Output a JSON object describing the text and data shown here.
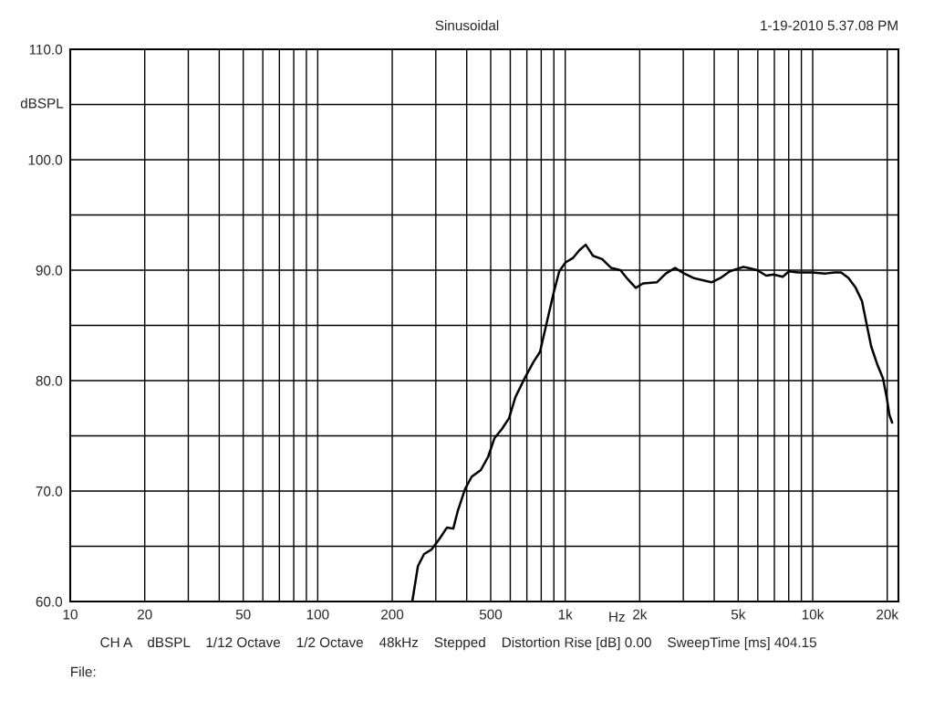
{
  "chart_data": {
    "type": "line",
    "title": "Sinusoidal",
    "xlabel": "Hz",
    "ylabel": "dBSPL",
    "annotations": [
      "1-19-2010 5.37.08 PM",
      "CH A    dBSPL    1/12 Octave    1/2 Octave    48kHz    Stepped    Distortion Rise [dB] 0.00    SweepTime [ms] 404.15",
      "File:"
    ],
    "log": "x",
    "grid": true,
    "marker": "none",
    "line_style": "solid",
    "xlim": [
      10,
      22200
    ],
    "ylim": [
      60,
      110
    ],
    "xticks": [
      10,
      20,
      {
        "value": 30,
        "label": null
      },
      {
        "value": 40,
        "label": null
      },
      50,
      {
        "value": 60,
        "label": null
      },
      {
        "value": 70,
        "label": null
      },
      {
        "value": 80,
        "label": null
      },
      {
        "value": 90,
        "label": null
      },
      100,
      200,
      {
        "value": 300,
        "label": null
      },
      {
        "value": 400,
        "label": null
      },
      500,
      {
        "value": 600,
        "label": null
      },
      {
        "value": 700,
        "label": null
      },
      {
        "value": 800,
        "label": null
      },
      {
        "value": 900,
        "label": null
      },
      {
        "value": 1000,
        "label": "1k"
      },
      {
        "value": 2000,
        "label": "2k"
      },
      {
        "value": 3000,
        "label": null
      },
      {
        "value": 4000,
        "label": null
      },
      {
        "value": 5000,
        "label": "5k"
      },
      {
        "value": 6000,
        "label": null
      },
      {
        "value": 7000,
        "label": null
      },
      {
        "value": 8000,
        "label": null
      },
      {
        "value": 9000,
        "label": null
      },
      {
        "value": 10000,
        "label": "10k"
      },
      {
        "value": 20000,
        "label": "20k"
      }
    ],
    "yticks": [
      {
        "value": 60,
        "label": "60.0"
      },
      {
        "value": 65,
        "label": null
      },
      {
        "value": 70,
        "label": "70.0"
      },
      {
        "value": 75,
        "label": null
      },
      {
        "value": 80,
        "label": "80.0"
      },
      {
        "value": 85,
        "label": null
      },
      {
        "value": 90,
        "label": "90.0"
      },
      {
        "value": 95,
        "label": null
      },
      {
        "value": 100,
        "label": "100.0"
      },
      {
        "value": 105,
        "label": null
      },
      {
        "value": 110,
        "label": "110.0"
      }
    ],
    "series": [
      {
        "color": "#000000",
        "x": [
          241,
          254,
          269,
          288,
          311,
          333,
          353,
          368,
          394,
          419,
          456,
          488,
          518,
          554,
          593,
          629,
          685,
          745,
          791,
          847,
          899,
          946,
          1003,
          1074,
          1140,
          1210,
          1295,
          1410,
          1535,
          1671,
          1787,
          1928,
          2064,
          2345,
          2551,
          2779,
          3025,
          3289,
          3899,
          4246,
          4624,
          5250,
          5483,
          5970,
          6491,
          6942,
          7567,
          8017,
          8730,
          9930,
          11270,
          12270,
          13030,
          13940,
          14920,
          15820,
          16520,
          17230,
          18280,
          19230,
          19900,
          20410,
          20940
        ],
        "values": [
          60.0,
          63.2,
          64.3,
          64.7,
          65.7,
          66.7,
          66.6,
          68.2,
          70.2,
          71.3,
          71.9,
          73.1,
          74.8,
          75.6,
          76.6,
          78.5,
          80.2,
          81.7,
          82.6,
          85.5,
          88.0,
          89.9,
          90.7,
          91.1,
          91.8,
          92.3,
          91.3,
          91.0,
          90.2,
          90.0,
          89.2,
          88.4,
          88.8,
          88.9,
          89.7,
          90.2,
          89.7,
          89.3,
          88.9,
          89.3,
          89.9,
          90.3,
          90.2,
          90.0,
          89.5,
          89.6,
          89.4,
          89.9,
          89.8,
          89.8,
          89.7,
          89.8,
          89.8,
          89.3,
          88.4,
          87.2,
          85.1,
          83.1,
          81.4,
          80.2,
          78.5,
          76.9,
          76.2
        ]
      }
    ]
  }
}
